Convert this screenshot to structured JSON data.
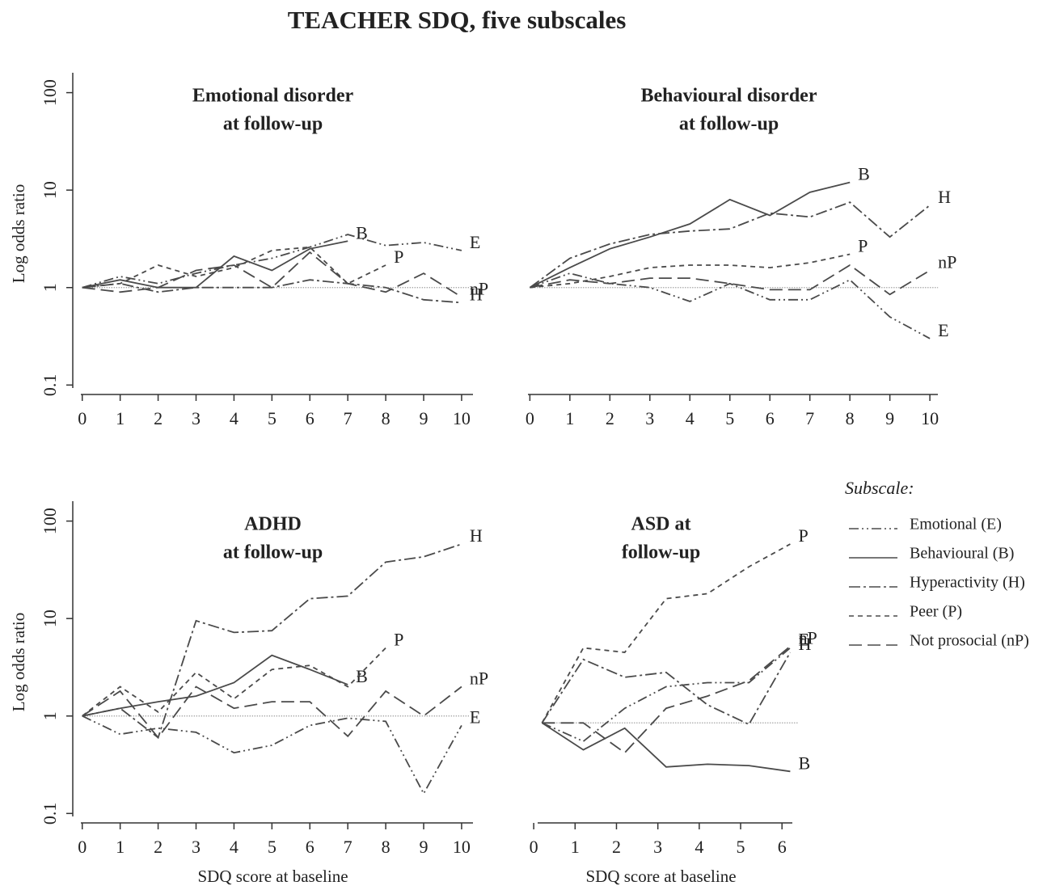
{
  "title": "TEACHER SDQ, five subscales",
  "legend": {
    "title": "Subscale:",
    "entries": [
      {
        "name": "Emotional (E)",
        "color": "#4a4a4a",
        "dash": "12 4 2 4 2 4"
      },
      {
        "name": "Behavioural (B)",
        "color": "#4a4a4a",
        "dash": ""
      },
      {
        "name": "Hyperactivity (H)",
        "color": "#4a4a4a",
        "dash": "14 4 3 4"
      },
      {
        "name": "Peer (P)",
        "color": "#4a4a4a",
        "dash": "6 5"
      },
      {
        "name": "Not prosocial (nP)",
        "color": "#4a4a4a",
        "dash": "16 7"
      }
    ]
  },
  "chart_data": [
    {
      "type": "line",
      "title": [
        "Emotional disorder",
        "at follow-up"
      ],
      "y_label": "Log odds ratio",
      "log_y": true,
      "ylim": [
        0.08,
        160
      ],
      "yticks": [
        0.1,
        1,
        10,
        100
      ],
      "reference_line": 1,
      "x": [
        0,
        1,
        2,
        3,
        4,
        5,
        6,
        7,
        8,
        9,
        10
      ],
      "xlim": [
        -0.25,
        10.3
      ],
      "xticks": [
        0,
        1,
        2,
        3,
        4,
        5,
        6,
        7,
        8,
        9,
        10
      ],
      "series": [
        {
          "name": "E",
          "values": [
            1,
            1.3,
            1.1,
            1.4,
            1.7,
            2.0,
            2.6,
            3.5,
            2.7,
            2.9,
            2.4
          ]
        },
        {
          "name": "B",
          "values": [
            1,
            1.2,
            1.0,
            1.0,
            2.1,
            1.5,
            2.5,
            3.0,
            null,
            null,
            null
          ]
        },
        {
          "name": "H",
          "values": [
            1,
            1.1,
            0.9,
            1.0,
            1.0,
            1.0,
            1.2,
            1.1,
            1.0,
            0.75,
            0.7
          ]
        },
        {
          "name": "P",
          "values": [
            1,
            1.1,
            1.7,
            1.3,
            1.6,
            2.4,
            2.6,
            1.1,
            1.7,
            null,
            null
          ]
        },
        {
          "name": "nP",
          "values": [
            1,
            0.9,
            1.0,
            1.5,
            1.7,
            1.0,
            2.3,
            1.1,
            0.9,
            1.4,
            0.8
          ]
        }
      ]
    },
    {
      "type": "line",
      "title": [
        "Behavioural disorder",
        "at follow-up"
      ],
      "log_y": true,
      "ylim": [
        0.08,
        160
      ],
      "reference_line": 1,
      "x": [
        0,
        1,
        2,
        3,
        4,
        5,
        6,
        7,
        8,
        9,
        10
      ],
      "xlim": [
        -0.25,
        10.2
      ],
      "xticks": [
        0,
        1,
        2,
        3,
        4,
        5,
        6,
        7,
        8,
        9,
        10
      ],
      "series": [
        {
          "name": "E",
          "values": [
            1,
            1.4,
            1.1,
            1.0,
            0.72,
            1.1,
            0.75,
            0.75,
            1.2,
            0.5,
            0.3
          ]
        },
        {
          "name": "B",
          "values": [
            1,
            1.6,
            2.5,
            3.3,
            4.5,
            8,
            5.5,
            9.5,
            12,
            null,
            null
          ]
        },
        {
          "name": "H",
          "values": [
            1,
            2.0,
            2.8,
            3.5,
            3.8,
            4.0,
            5.8,
            5.3,
            7.5,
            3.3,
            7.0
          ]
        },
        {
          "name": "P",
          "values": [
            1,
            1.1,
            1.3,
            1.6,
            1.7,
            1.7,
            1.6,
            1.8,
            2.2,
            null,
            null
          ]
        },
        {
          "name": "nP",
          "values": [
            1,
            1.2,
            1.1,
            1.25,
            1.25,
            1.1,
            0.95,
            0.95,
            1.7,
            0.85,
            1.5
          ]
        }
      ]
    },
    {
      "type": "line",
      "title": [
        "ADHD",
        "at follow-up"
      ],
      "y_label": "Log odds ratio",
      "x_label": "SDQ score at baseline",
      "log_y": true,
      "ylim": [
        0.08,
        160
      ],
      "yticks": [
        0.1,
        1,
        10,
        100
      ],
      "reference_line": 1,
      "x": [
        0,
        1,
        2,
        3,
        4,
        5,
        6,
        7,
        8,
        9,
        10
      ],
      "xlim": [
        -0.25,
        10.3
      ],
      "xticks": [
        0,
        1,
        2,
        3,
        4,
        5,
        6,
        7,
        8,
        9,
        10
      ],
      "series": [
        {
          "name": "E",
          "values": [
            1,
            0.65,
            0.75,
            0.68,
            0.42,
            0.5,
            0.8,
            0.95,
            0.88,
            0.16,
            0.8
          ]
        },
        {
          "name": "B",
          "values": [
            1,
            1.2,
            1.4,
            1.6,
            2.2,
            4.2,
            3.0,
            2.1,
            null,
            null,
            null
          ]
        },
        {
          "name": "H",
          "values": [
            1,
            1.2,
            0.6,
            9.5,
            7.2,
            7.5,
            16,
            17,
            38,
            43,
            58
          ]
        },
        {
          "name": "P",
          "values": [
            1,
            2.0,
            1.1,
            2.8,
            1.5,
            3.0,
            3.3,
            2.0,
            5.0,
            null,
            null
          ]
        },
        {
          "name": "nP",
          "values": [
            1,
            1.8,
            0.6,
            2.0,
            1.2,
            1.4,
            1.4,
            0.62,
            1.8,
            1.0,
            2.0
          ]
        }
      ]
    },
    {
      "type": "line",
      "title": [
        "ASD at",
        "follow-up"
      ],
      "x_label": "SDQ score at baseline",
      "log_y": true,
      "ylim": [
        0.08,
        160
      ],
      "reference_line": 0.85,
      "x": [
        0.2,
        1.2,
        2.2,
        3.2,
        4.2,
        5.2,
        6.2
      ],
      "xlim": [
        -0.1,
        6.25
      ],
      "xticks": [
        0,
        1,
        2,
        3,
        4,
        5,
        6
      ],
      "series": [
        {
          "name": "E",
          "values": [
            0.85,
            0.55,
            1.2,
            2.0,
            2.2,
            2.2,
            5.0
          ]
        },
        {
          "name": "B",
          "values": [
            0.85,
            0.45,
            0.75,
            0.3,
            0.32,
            0.31,
            0.27
          ]
        },
        {
          "name": "H",
          "values": [
            0.85,
            3.8,
            2.5,
            2.8,
            1.3,
            0.82,
            4.5
          ]
        },
        {
          "name": "P",
          "values": [
            0.85,
            5.0,
            4.5,
            16,
            18,
            34,
            58
          ]
        },
        {
          "name": "nP",
          "values": [
            0.85,
            0.85,
            0.42,
            1.2,
            1.6,
            2.3,
            5.2
          ]
        }
      ]
    }
  ]
}
